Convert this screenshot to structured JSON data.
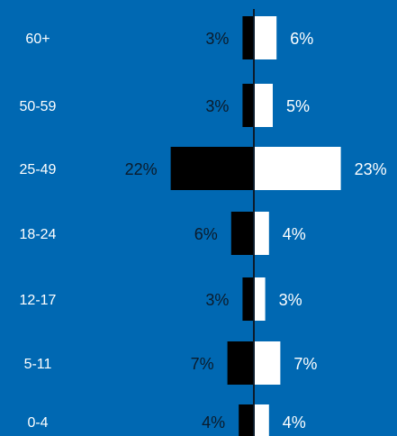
{
  "colors": {
    "background": "#0068B2",
    "left_bar": "#000000",
    "right_bar": "#ffffff",
    "axis": "#0b1b2b",
    "category_text": "#ffffff",
    "left_text": "#0b1b2b",
    "right_text": "#ffffff"
  },
  "chart_data": {
    "type": "bar",
    "orientation": "horizontal",
    "layout": "diverging",
    "categories": [
      "60+",
      "50-59",
      "25-49",
      "18-24",
      "12-17",
      "5-11",
      "0-4"
    ],
    "series": [
      {
        "side": "left",
        "values": [
          3,
          3,
          22,
          6,
          3,
          7,
          4
        ],
        "labels": [
          "3%",
          "3%",
          "22%",
          "6%",
          "3%",
          "7%",
          "4%"
        ]
      },
      {
        "side": "right",
        "values": [
          6,
          5,
          23,
          4,
          3,
          7,
          4
        ],
        "labels": [
          "6%",
          "5%",
          "23%",
          "4%",
          "3%",
          "7%",
          "4%"
        ]
      }
    ],
    "value_unit": "%",
    "title": "",
    "xlabel": "",
    "ylabel": "",
    "grid": false,
    "legend": "none"
  }
}
